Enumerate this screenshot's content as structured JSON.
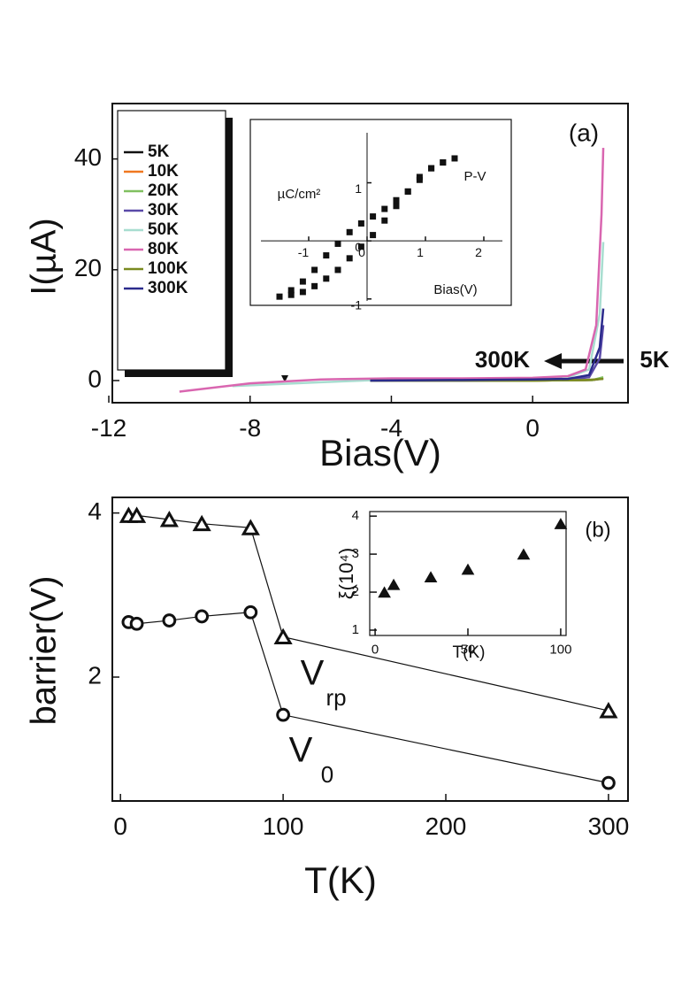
{
  "chart_data": [
    {
      "type": "line",
      "xlabel": "Bias(V)",
      "ylabel": "I(µA)",
      "xlim": [
        -11.9,
        2.7
      ],
      "ylim": [
        -4,
        50
      ],
      "xticks": [
        -12,
        -8,
        -4,
        0
      ],
      "yticks": [
        0,
        20,
        40
      ],
      "legend": "top-left",
      "annotations": [
        "(a)",
        "300K",
        "5K"
      ],
      "series": [
        {
          "name": "5K",
          "color": "#111111",
          "x": [
            -4.6,
            0,
            1.7,
            2.0
          ],
          "values": [
            0,
            0,
            0.1,
            0.4
          ]
        },
        {
          "name": "10K",
          "color": "#f07820",
          "x": [
            -4.6,
            0,
            1.7,
            2.0
          ],
          "values": [
            0,
            0,
            0.1,
            0.5
          ]
        },
        {
          "name": "20K",
          "color": "#80c060",
          "x": [
            -4.6,
            0,
            1.7,
            2.0
          ],
          "values": [
            0,
            0,
            0.1,
            0.6
          ]
        },
        {
          "name": "30K",
          "color": "#5a4aa8",
          "x": [
            -4.6,
            -2,
            0,
            1,
            1.6,
            1.9,
            2.0
          ],
          "values": [
            0,
            0,
            0.1,
            0.2,
            0.6,
            4,
            10
          ]
        },
        {
          "name": "50K",
          "color": "#a8ddd0",
          "x": [
            -8.5,
            -6,
            -4,
            -2,
            0,
            1,
            1.6,
            1.9,
            2.0
          ],
          "values": [
            -1,
            -0.3,
            0.2,
            0.3,
            0.4,
            0.6,
            2,
            12,
            25
          ]
        },
        {
          "name": "80K",
          "color": "#d966b0",
          "x": [
            -10,
            -8,
            -6,
            -4,
            -2,
            0,
            1,
            1.5,
            1.8,
            1.95,
            2.0
          ],
          "values": [
            -2,
            -0.5,
            0.2,
            0.4,
            0.4,
            0.5,
            0.8,
            2,
            10,
            30,
            42
          ]
        },
        {
          "name": "100K",
          "color": "#7a8a20",
          "x": [
            -4.6,
            0,
            1.5,
            2.0
          ],
          "values": [
            0,
            0,
            0.1,
            0.3
          ]
        },
        {
          "name": "300K",
          "color": "#2b2b8c",
          "x": [
            -4.6,
            -2,
            0,
            1,
            1.6,
            1.9,
            2.0
          ],
          "values": [
            0,
            0.1,
            0.2,
            0.3,
            1,
            6,
            13
          ]
        }
      ]
    },
    {
      "type": "scatter",
      "xlabel": "Bias(V)",
      "ylabel": "µC/cm²",
      "marker": "square",
      "color": "#111111",
      "xlim": [
        -2.0,
        2.47
      ],
      "ylim": [
        -1.11,
        2.09
      ],
      "xticks": [
        -1,
        0,
        1,
        2
      ],
      "yticks": [
        -1,
        0,
        1
      ],
      "annotations": [
        "P-V"
      ],
      "x": [
        1.5,
        1.3,
        1.1,
        0.9,
        0.7,
        0.5,
        0.3,
        0.1,
        -0.1,
        -0.3,
        -0.5,
        -0.7,
        -0.9,
        -1.1,
        -1.3,
        -1.5,
        -1.3,
        -1.1,
        -0.9,
        -0.7,
        -0.5,
        -0.3,
        -0.1,
        0.1,
        0.3,
        0.5,
        0.7,
        0.9,
        1.1,
        1.3
      ],
      "values": [
        1.42,
        1.35,
        1.25,
        1.05,
        0.85,
        0.7,
        0.55,
        0.42,
        0.3,
        0.15,
        -0.05,
        -0.25,
        -0.5,
        -0.7,
        -0.85,
        -0.96,
        -0.93,
        -0.88,
        -0.78,
        -0.65,
        -0.5,
        -0.3,
        -0.1,
        0.1,
        0.35,
        0.6,
        0.85,
        1.1,
        1.25,
        1.35
      ]
    },
    {
      "type": "line",
      "xlabel": "T(K)",
      "ylabel": "barrier(V)",
      "xlim": [
        -5,
        312
      ],
      "ylim": [
        0.49,
        4.19
      ],
      "xticks": [
        0,
        100,
        200,
        300
      ],
      "yticks": [
        2,
        4
      ],
      "annotations": [
        "V",
        "rp",
        "V",
        "0"
      ],
      "x": [
        5,
        10,
        30,
        50,
        80,
        100,
        300
      ],
      "series": [
        {
          "marker": "triangle",
          "color": "#111111",
          "values": [
            3.97,
            3.97,
            3.92,
            3.87,
            3.82,
            2.49,
            1.59
          ]
        },
        {
          "marker": "circle",
          "color": "#111111",
          "values": [
            2.67,
            2.65,
            2.69,
            2.74,
            2.79,
            1.54,
            0.71
          ]
        }
      ]
    },
    {
      "type": "scatter",
      "xlabel": "T(K)",
      "ylabel": "ξ(10⁴)",
      "marker": "triangle",
      "color": "#111111",
      "xlim": [
        -2.9,
        102.9
      ],
      "ylim": [
        0.86,
        4.12
      ],
      "xticks": [
        0,
        50,
        100
      ],
      "yticks": [
        1,
        2,
        3,
        4
      ],
      "annotations": [
        "(b)"
      ],
      "x": [
        5,
        10,
        30,
        50,
        80,
        100
      ],
      "values": [
        2.0,
        2.2,
        2.4,
        2.6,
        3.0,
        3.8
      ]
    }
  ]
}
